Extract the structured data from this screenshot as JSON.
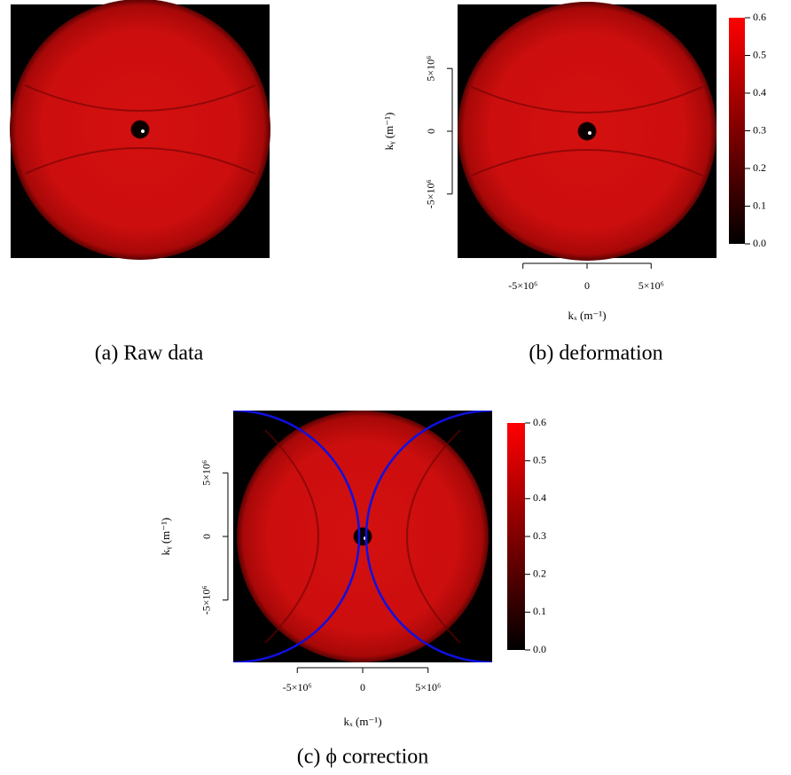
{
  "panels": [
    {
      "caption": "(a) Raw data"
    },
    {
      "caption": "(b) deformation",
      "x_label": "kₓ (m⁻¹)",
      "y_label": "kᵧ (m⁻¹)",
      "xlim": [
        -10100000,
        10100000
      ],
      "ylim": [
        -10100000,
        10100000
      ],
      "xticks": [
        {
          "value": -5000000,
          "label": "-5×10⁶"
        },
        0,
        {
          "value": 5000000,
          "label": "5×10⁶"
        }
      ],
      "yticks": [
        {
          "value": -5000000,
          "label": "-5×10⁶"
        },
        0,
        {
          "value": 5000000,
          "label": "5×10⁶"
        }
      ],
      "colorbar_lim": [
        0,
        0.6
      ],
      "colorbar_ticks": [
        {
          "value": 0,
          "label": "0.0"
        },
        0.1,
        0.2,
        0.3,
        0.4,
        0.5,
        0.6
      ]
    },
    {
      "caption": "(c) ϕ correction",
      "x_label": "kₓ (m⁻¹)",
      "y_label": "kᵧ (m⁻¹)",
      "xlim": [
        -9900000,
        9900000
      ],
      "ylim": [
        -9900000,
        9900000
      ],
      "xticks": [
        {
          "value": -5000000,
          "label": "-5×10⁶"
        },
        0,
        {
          "value": 5000000,
          "label": "5×10⁶"
        }
      ],
      "yticks": [
        {
          "value": -5000000,
          "label": "-5×10⁶"
        },
        0,
        {
          "value": 5000000,
          "label": "5×10⁶"
        }
      ],
      "colorbar_lim": [
        0,
        0.6
      ],
      "colorbar_ticks": [
        {
          "value": 0,
          "label": "0.0"
        },
        0.1,
        0.2,
        0.3,
        0.4,
        0.5,
        0.6
      ]
    }
  ]
}
